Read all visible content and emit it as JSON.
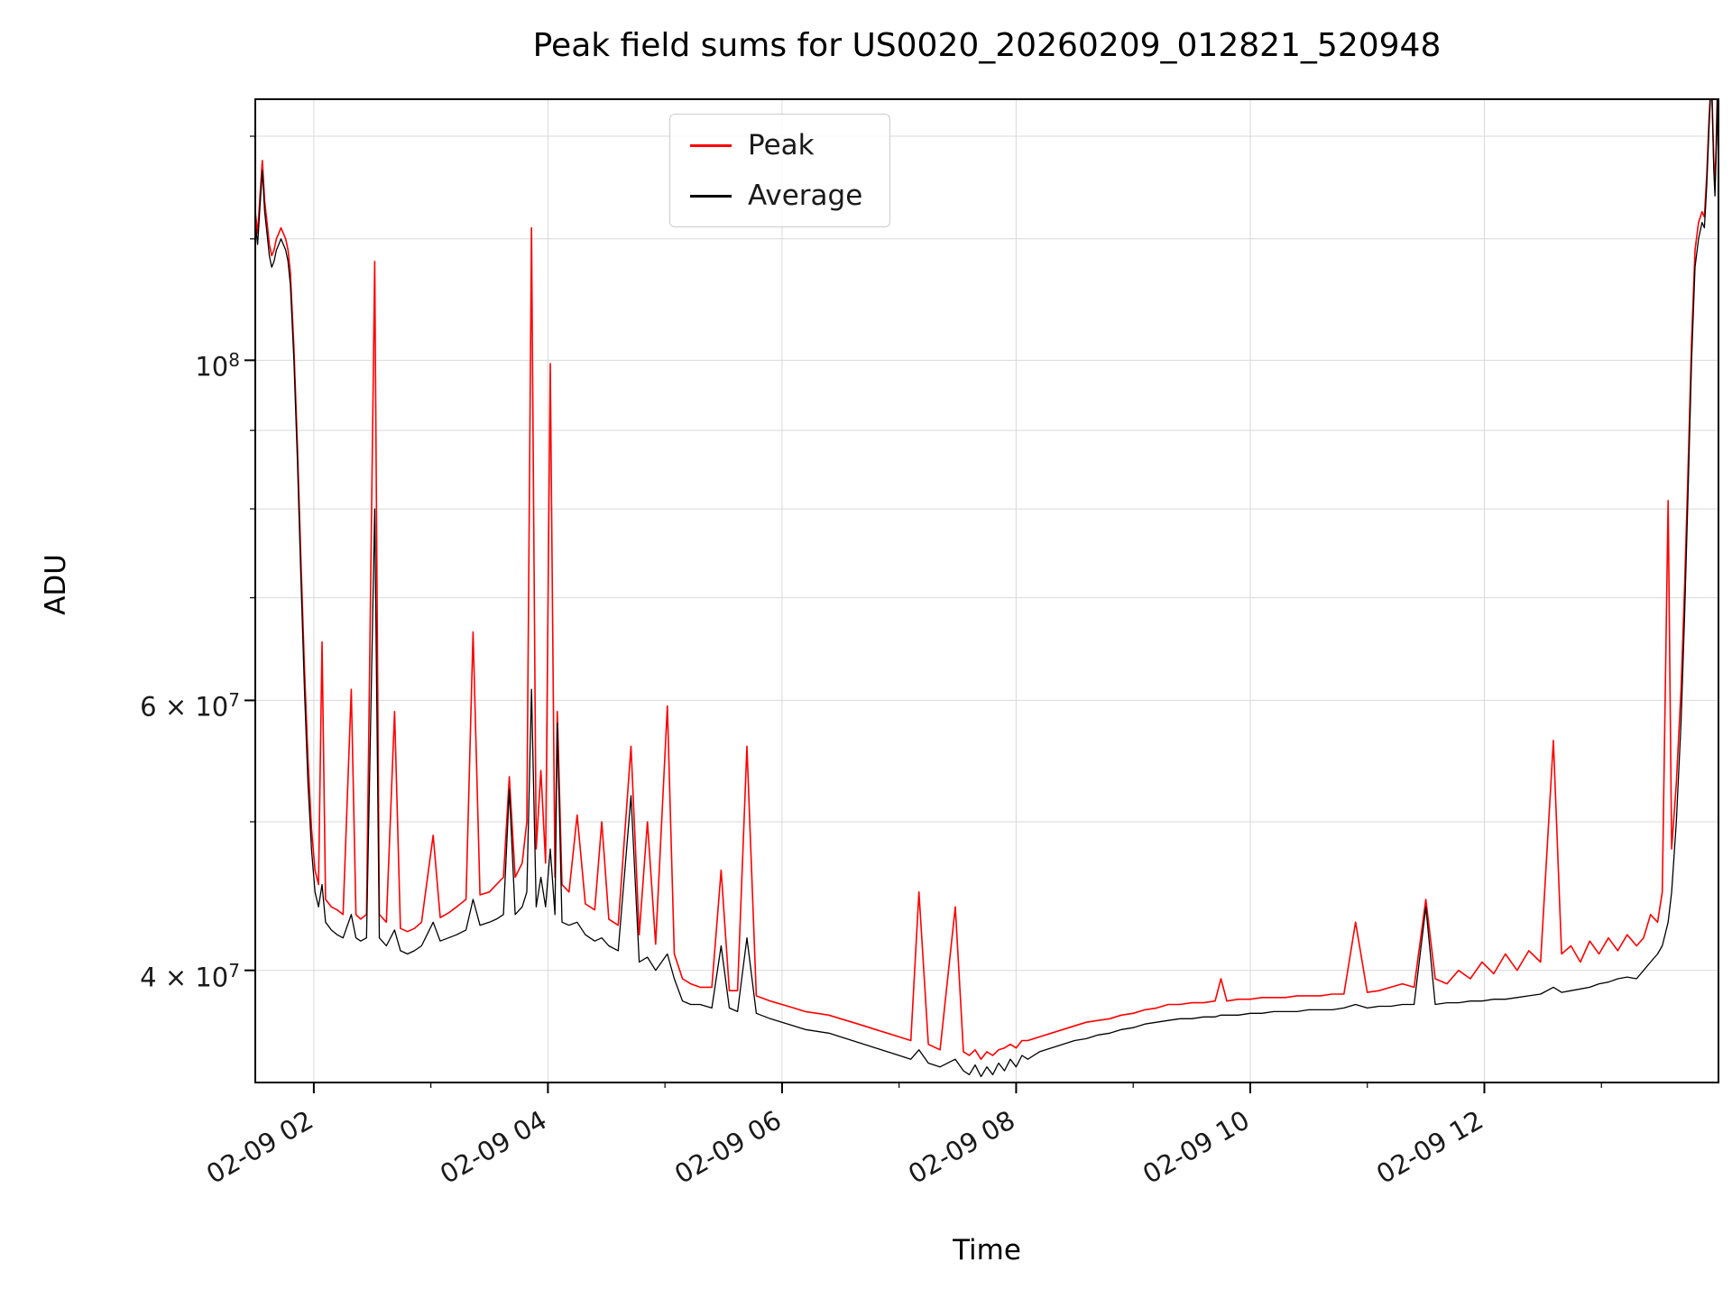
{
  "chart_data": {
    "type": "line",
    "title": "Peak field sums for US0020_20260209_012821_520948",
    "xlabel": "Time",
    "ylabel": "ADU",
    "yscale": "log",
    "grid": true,
    "legend_position": "upper center",
    "grid_color": "#d9d9d9",
    "xlim": [
      1.5,
      14.0
    ],
    "ylim": [
      33800000,
      148000000
    ],
    "x_ticks": [
      {
        "value": 2,
        "label": "02-09 02"
      },
      {
        "value": 4,
        "label": "02-09 04"
      },
      {
        "value": 6,
        "label": "02-09 06"
      },
      {
        "value": 8,
        "label": "02-09 08"
      },
      {
        "value": 10,
        "label": "02-09 10"
      },
      {
        "value": 12,
        "label": "02-09 12"
      }
    ],
    "x_minor_ticks": [
      3,
      5,
      7,
      9,
      11,
      13
    ],
    "y_ticks": [
      {
        "value": 40000000,
        "prefix": "4 × 10",
        "exponent": "7"
      },
      {
        "value": 60000000,
        "prefix": "6 × 10",
        "exponent": "7"
      },
      {
        "value": 100000000,
        "prefix": "10",
        "exponent": "8"
      }
    ],
    "y_gridlines": [
      40000000,
      50000000,
      60000000,
      70000000,
      80000000,
      90000000,
      100000000,
      120000000,
      140000000
    ],
    "y_value_scale": 10000000,
    "series": [
      {
        "name": "Peak",
        "color": "#ff0000",
        "point_index": 2,
        "line_width": 1.6
      },
      {
        "name": "Average",
        "color": "#000000",
        "point_index": 1,
        "line_width": 1.3
      }
    ],
    "points": [
      [
        1.5,
        12.3,
        12.5
      ],
      [
        1.52,
        11.9,
        12.1
      ],
      [
        1.54,
        12.6,
        12.8
      ],
      [
        1.56,
        13.3,
        13.5
      ],
      [
        1.58,
        12.5,
        12.7
      ],
      [
        1.6,
        12.1,
        12.3
      ],
      [
        1.62,
        11.7,
        11.9
      ],
      [
        1.64,
        11.5,
        11.7
      ],
      [
        1.66,
        11.6,
        11.8
      ],
      [
        1.68,
        11.8,
        12.0
      ],
      [
        1.7,
        11.9,
        12.1
      ],
      [
        1.72,
        12.0,
        12.2
      ],
      [
        1.74,
        11.9,
        12.1
      ],
      [
        1.76,
        11.8,
        12.0
      ],
      [
        1.78,
        11.6,
        11.8
      ],
      [
        1.8,
        11.2,
        11.4
      ],
      [
        1.83,
        10.0,
        10.2
      ],
      [
        1.86,
        8.6,
        8.8
      ],
      [
        1.89,
        7.2,
        7.4
      ],
      [
        1.92,
        6.1,
        6.3
      ],
      [
        1.95,
        5.3,
        5.5
      ],
      [
        1.98,
        4.8,
        4.95
      ],
      [
        2.01,
        4.5,
        4.65
      ],
      [
        2.04,
        4.4,
        4.55
      ],
      [
        2.07,
        4.55,
        6.55
      ],
      [
        2.1,
        4.3,
        4.45
      ],
      [
        2.15,
        4.25,
        4.4
      ],
      [
        2.2,
        4.22,
        4.38
      ],
      [
        2.25,
        4.2,
        4.35
      ],
      [
        2.32,
        4.35,
        6.1
      ],
      [
        2.36,
        4.2,
        4.35
      ],
      [
        2.4,
        4.18,
        4.32
      ],
      [
        2.45,
        4.2,
        4.35
      ],
      [
        2.52,
        8.0,
        11.6
      ],
      [
        2.56,
        4.2,
        4.35
      ],
      [
        2.62,
        4.15,
        4.3
      ],
      [
        2.69,
        4.25,
        5.9
      ],
      [
        2.74,
        4.12,
        4.26
      ],
      [
        2.8,
        4.1,
        4.24
      ],
      [
        2.86,
        4.12,
        4.26
      ],
      [
        2.92,
        4.15,
        4.3
      ],
      [
        3.02,
        4.3,
        4.9
      ],
      [
        3.08,
        4.18,
        4.33
      ],
      [
        3.15,
        4.2,
        4.36
      ],
      [
        3.22,
        4.22,
        4.4
      ],
      [
        3.3,
        4.25,
        4.45
      ],
      [
        3.36,
        4.45,
        6.65
      ],
      [
        3.42,
        4.28,
        4.48
      ],
      [
        3.5,
        4.3,
        4.5
      ],
      [
        3.56,
        4.32,
        4.55
      ],
      [
        3.62,
        4.35,
        4.6
      ],
      [
        3.67,
        5.25,
        5.35
      ],
      [
        3.72,
        4.35,
        4.6
      ],
      [
        3.78,
        4.4,
        4.7
      ],
      [
        3.82,
        4.5,
        5.0
      ],
      [
        3.86,
        6.1,
        12.2
      ],
      [
        3.9,
        4.4,
        4.8
      ],
      [
        3.94,
        4.6,
        5.4
      ],
      [
        3.98,
        4.4,
        4.7
      ],
      [
        4.02,
        4.8,
        9.95
      ],
      [
        4.06,
        4.35,
        4.6
      ],
      [
        4.08,
        5.8,
        5.9
      ],
      [
        4.12,
        4.3,
        4.55
      ],
      [
        4.18,
        4.28,
        4.5
      ],
      [
        4.25,
        4.3,
        5.05
      ],
      [
        4.32,
        4.22,
        4.42
      ],
      [
        4.4,
        4.18,
        4.38
      ],
      [
        4.46,
        4.2,
        5.0
      ],
      [
        4.52,
        4.15,
        4.32
      ],
      [
        4.6,
        4.12,
        4.28
      ],
      [
        4.71,
        5.2,
        5.6
      ],
      [
        4.78,
        4.05,
        4.22
      ],
      [
        4.85,
        4.08,
        5.0
      ],
      [
        4.92,
        4.0,
        4.16
      ],
      [
        5.02,
        4.1,
        5.95
      ],
      [
        5.08,
        3.95,
        4.1
      ],
      [
        5.15,
        3.82,
        3.95
      ],
      [
        5.22,
        3.8,
        3.92
      ],
      [
        5.3,
        3.8,
        3.9
      ],
      [
        5.4,
        3.78,
        3.9
      ],
      [
        5.48,
        4.15,
        4.65
      ],
      [
        5.55,
        3.78,
        3.88
      ],
      [
        5.62,
        3.76,
        3.88
      ],
      [
        5.7,
        4.2,
        5.6
      ],
      [
        5.78,
        3.75,
        3.85
      ],
      [
        5.9,
        3.72,
        3.82
      ],
      [
        6.0,
        3.7,
        3.8
      ],
      [
        6.1,
        3.68,
        3.78
      ],
      [
        6.2,
        3.66,
        3.76
      ],
      [
        6.3,
        3.65,
        3.75
      ],
      [
        6.4,
        3.64,
        3.74
      ],
      [
        6.5,
        3.62,
        3.72
      ],
      [
        6.6,
        3.6,
        3.7
      ],
      [
        6.7,
        3.58,
        3.68
      ],
      [
        6.8,
        3.56,
        3.66
      ],
      [
        6.9,
        3.54,
        3.64
      ],
      [
        7.0,
        3.52,
        3.62
      ],
      [
        7.1,
        3.5,
        3.6
      ],
      [
        7.17,
        3.55,
        4.5
      ],
      [
        7.25,
        3.48,
        3.58
      ],
      [
        7.35,
        3.46,
        3.55
      ],
      [
        7.48,
        3.5,
        4.4
      ],
      [
        7.55,
        3.44,
        3.54
      ],
      [
        7.6,
        3.42,
        3.52
      ],
      [
        7.65,
        3.47,
        3.55
      ],
      [
        7.7,
        3.41,
        3.5
      ],
      [
        7.75,
        3.46,
        3.54
      ],
      [
        7.8,
        3.42,
        3.52
      ],
      [
        7.85,
        3.48,
        3.55
      ],
      [
        7.9,
        3.44,
        3.56
      ],
      [
        7.95,
        3.5,
        3.58
      ],
      [
        8.0,
        3.46,
        3.56
      ],
      [
        8.05,
        3.52,
        3.6
      ],
      [
        8.1,
        3.5,
        3.6
      ],
      [
        8.2,
        3.54,
        3.62
      ],
      [
        8.3,
        3.56,
        3.64
      ],
      [
        8.4,
        3.58,
        3.66
      ],
      [
        8.5,
        3.6,
        3.68
      ],
      [
        8.6,
        3.61,
        3.7
      ],
      [
        8.7,
        3.63,
        3.71
      ],
      [
        8.8,
        3.64,
        3.72
      ],
      [
        8.9,
        3.66,
        3.74
      ],
      [
        9.0,
        3.67,
        3.75
      ],
      [
        9.1,
        3.69,
        3.77
      ],
      [
        9.2,
        3.7,
        3.78
      ],
      [
        9.3,
        3.71,
        3.8
      ],
      [
        9.4,
        3.72,
        3.8
      ],
      [
        9.5,
        3.72,
        3.81
      ],
      [
        9.6,
        3.73,
        3.81
      ],
      [
        9.7,
        3.73,
        3.82
      ],
      [
        9.75,
        3.74,
        3.95
      ],
      [
        9.8,
        3.74,
        3.82
      ],
      [
        9.9,
        3.74,
        3.83
      ],
      [
        10.0,
        3.75,
        3.83
      ],
      [
        10.1,
        3.75,
        3.84
      ],
      [
        10.2,
        3.76,
        3.84
      ],
      [
        10.3,
        3.76,
        3.84
      ],
      [
        10.4,
        3.76,
        3.85
      ],
      [
        10.5,
        3.77,
        3.85
      ],
      [
        10.6,
        3.77,
        3.85
      ],
      [
        10.7,
        3.77,
        3.86
      ],
      [
        10.8,
        3.78,
        3.86
      ],
      [
        10.9,
        3.8,
        4.3
      ],
      [
        11.0,
        3.78,
        3.87
      ],
      [
        11.1,
        3.79,
        3.88
      ],
      [
        11.2,
        3.79,
        3.9
      ],
      [
        11.3,
        3.8,
        3.92
      ],
      [
        11.4,
        3.8,
        3.9
      ],
      [
        11.5,
        4.4,
        4.45
      ],
      [
        11.58,
        3.8,
        3.95
      ],
      [
        11.68,
        3.81,
        3.92
      ],
      [
        11.78,
        3.81,
        4.0
      ],
      [
        11.88,
        3.82,
        3.95
      ],
      [
        11.98,
        3.82,
        4.05
      ],
      [
        12.08,
        3.83,
        3.98
      ],
      [
        12.18,
        3.83,
        4.1
      ],
      [
        12.28,
        3.84,
        4.0
      ],
      [
        12.38,
        3.85,
        4.12
      ],
      [
        12.48,
        3.86,
        4.05
      ],
      [
        12.59,
        3.9,
        5.65
      ],
      [
        12.66,
        3.87,
        4.1
      ],
      [
        12.74,
        3.88,
        4.15
      ],
      [
        12.82,
        3.89,
        4.05
      ],
      [
        12.9,
        3.9,
        4.18
      ],
      [
        12.98,
        3.92,
        4.1
      ],
      [
        13.06,
        3.93,
        4.2
      ],
      [
        13.14,
        3.95,
        4.12
      ],
      [
        13.22,
        3.96,
        4.22
      ],
      [
        13.3,
        3.95,
        4.15
      ],
      [
        13.36,
        4.0,
        4.2
      ],
      [
        13.42,
        4.05,
        4.35
      ],
      [
        13.48,
        4.1,
        4.3
      ],
      [
        13.52,
        4.15,
        4.5
      ],
      [
        13.57,
        4.3,
        8.1
      ],
      [
        13.6,
        4.5,
        4.8
      ],
      [
        13.64,
        5.0,
        5.3
      ],
      [
        13.68,
        5.8,
        6.1
      ],
      [
        13.71,
        6.8,
        7.1
      ],
      [
        13.74,
        8.2,
        8.5
      ],
      [
        13.77,
        10.0,
        10.3
      ],
      [
        13.8,
        11.5,
        11.8
      ],
      [
        13.83,
        12.0,
        12.3
      ],
      [
        13.86,
        12.3,
        12.5
      ],
      [
        13.88,
        12.2,
        12.4
      ],
      [
        13.9,
        13.0,
        13.2
      ],
      [
        13.92,
        14.2,
        14.4
      ],
      [
        13.94,
        15.3,
        15.4
      ],
      [
        13.95,
        14.3,
        14.4
      ],
      [
        13.96,
        13.3,
        13.5
      ],
      [
        13.97,
        12.8,
        13.0
      ],
      [
        13.98,
        13.6,
        13.8
      ],
      [
        13.99,
        14.8,
        14.9
      ],
      [
        14.0,
        13.4,
        13.6
      ]
    ]
  }
}
